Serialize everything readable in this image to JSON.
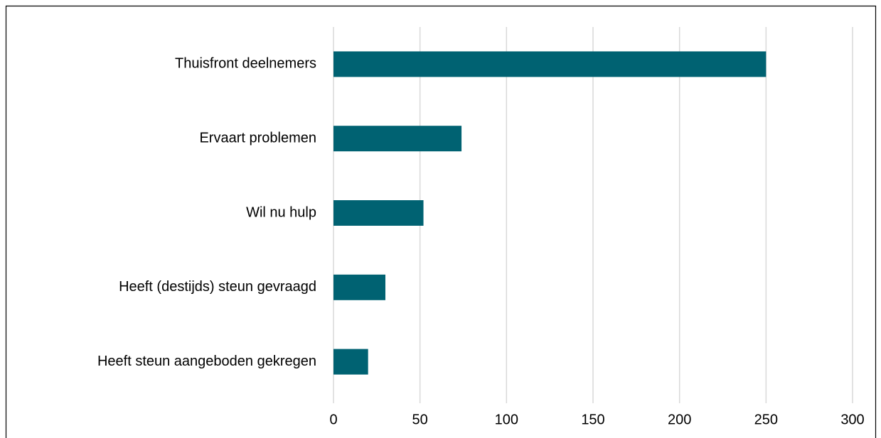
{
  "chart_data": {
    "type": "hbar",
    "categories": [
      "Thuisfront deelnemers",
      "Ervaart problemen",
      "Wil nu hulp",
      "Heeft (destijds) steun gevraagd",
      "Heeft steun aangeboden gekregen"
    ],
    "values": [
      250,
      74,
      52,
      30,
      20
    ],
    "color": "#006272",
    "xlim": [
      0,
      300
    ],
    "xticks": [
      0,
      50,
      100,
      150,
      200,
      250,
      300
    ],
    "grid": true
  }
}
